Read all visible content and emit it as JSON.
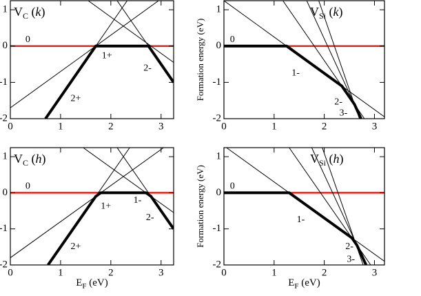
{
  "chart_data": [
    {
      "type": "line",
      "title": {
        "base": "V",
        "sub": "C",
        "open": " (",
        "var": "k",
        "close": ")"
      },
      "xlim": [
        0,
        3.25
      ],
      "ylim": [
        -2,
        1.25
      ],
      "xticks": [
        0,
        1,
        2,
        3
      ],
      "yticks": [
        -2,
        -1,
        0,
        1
      ],
      "series": [
        {
          "color": "#e8251c",
          "style": "medium",
          "x": [
            0,
            3.25
          ],
          "values": [
            0,
            0
          ]
        },
        {
          "color": "#000000",
          "style": "thin",
          "x": [
            0.7,
            2.325
          ],
          "values": [
            -2,
            1.25
          ]
        },
        {
          "color": "#000000",
          "style": "thin",
          "x": [
            0,
            2.95
          ],
          "values": [
            -1.7,
            1.25
          ]
        },
        {
          "color": "#000000",
          "style": "thin",
          "x": [
            1.55,
            3.25
          ],
          "values": [
            1.25,
            -0.45
          ]
        },
        {
          "color": "#000000",
          "style": "thin",
          "x": [
            2.125,
            3.25
          ],
          "values": [
            1.25,
            -1
          ]
        },
        {
          "color": "#000000",
          "style": "thick",
          "x": [
            0.7,
            1.7,
            2.75,
            3.25
          ],
          "values": [
            -2,
            0,
            0,
            -1
          ]
        }
      ],
      "annotations": [
        "0",
        "1+",
        "2+",
        "2-"
      ]
    },
    {
      "type": "line",
      "title": {
        "base": "V",
        "sub": "Si",
        "open": " (",
        "var": "k",
        "close": ")"
      },
      "y_label": "Formation energy (eV)",
      "xlim": [
        0,
        3.2
      ],
      "ylim": [
        -2,
        1.25
      ],
      "xticks": [
        0,
        1,
        2,
        3
      ],
      "yticks": [
        -2,
        -1,
        0,
        1
      ],
      "series": [
        {
          "color": "#e8251c",
          "style": "medium",
          "x": [
            0,
            3.2
          ],
          "values": [
            0,
            0
          ]
        },
        {
          "color": "#000000",
          "style": "thin",
          "x": [
            0,
            3.2
          ],
          "values": [
            1.25,
            -1.95
          ]
        },
        {
          "color": "#000000",
          "style": "thin",
          "x": [
            1.175,
            2.8
          ],
          "values": [
            1.25,
            -2
          ]
        },
        {
          "color": "#000000",
          "style": "thin",
          "x": [
            1.65,
            2.733
          ],
          "values": [
            1.25,
            -2
          ]
        },
        {
          "color": "#000000",
          "style": "thin",
          "x": [
            1.89,
            2.7
          ],
          "values": [
            1.25,
            -2
          ]
        },
        {
          "color": "#000000",
          "style": "thick",
          "x": [
            0,
            1.25,
            2.35,
            2.6,
            2.733
          ],
          "values": [
            0,
            0,
            -1.1,
            -1.6,
            -2
          ]
        }
      ],
      "annotations": [
        "0",
        "1-",
        "2-",
        "3-"
      ]
    },
    {
      "type": "line",
      "title": {
        "base": "V",
        "sub": "C",
        "open": " (",
        "var": "h",
        "close": ")"
      },
      "x_label": {
        "base": "E",
        "sub": "F",
        "rest": " (eV)"
      },
      "xlim": [
        0,
        3.25
      ],
      "ylim": [
        -2,
        1.25
      ],
      "xticks": [
        0,
        1,
        2,
        3
      ],
      "yticks": [
        -2,
        -1,
        0,
        1
      ],
      "series": [
        {
          "color": "#e8251c",
          "style": "medium",
          "x": [
            0,
            3.25
          ],
          "values": [
            0,
            0
          ]
        },
        {
          "color": "#000000",
          "style": "thin",
          "x": [
            0.75,
            2.375
          ],
          "values": [
            -2,
            1.25
          ]
        },
        {
          "color": "#000000",
          "style": "thin",
          "x": [
            0,
            3.05
          ],
          "values": [
            -1.8,
            1.25
          ]
        },
        {
          "color": "#000000",
          "style": "thin",
          "x": [
            1.45,
            3.25
          ],
          "values": [
            1.25,
            -0.55
          ]
        },
        {
          "color": "#000000",
          "style": "thin",
          "x": [
            2.125,
            3.25
          ],
          "values": [
            1.25,
            -1
          ]
        },
        {
          "color": "#000000",
          "style": "thick",
          "x": [
            0.75,
            1.7,
            1.8,
            2.7,
            2.8,
            3.25
          ],
          "values": [
            -2,
            -0.1,
            0,
            0,
            -0.1,
            -1
          ]
        }
      ],
      "annotations": [
        "0",
        "1+",
        "1-",
        "2-",
        "2+"
      ]
    },
    {
      "type": "line",
      "title": {
        "base": "V",
        "sub": "Si",
        "open": " (",
        "var": "h",
        "close": ")"
      },
      "x_label": {
        "base": "E",
        "sub": "F",
        "rest": " (eV)"
      },
      "y_label": "Formation energy (eV)",
      "xlim": [
        0,
        3.2
      ],
      "ylim": [
        -2,
        1.25
      ],
      "xticks": [
        0,
        1,
        2,
        3
      ],
      "yticks": [
        -2,
        -1,
        0,
        1
      ],
      "series": [
        {
          "color": "#e8251c",
          "style": "medium",
          "x": [
            0,
            3.2
          ],
          "values": [
            0,
            0
          ]
        },
        {
          "color": "#000000",
          "style": "thin",
          "x": [
            0.05,
            3.2
          ],
          "values": [
            1.25,
            -1.9
          ]
        },
        {
          "color": "#000000",
          "style": "thin",
          "x": [
            1.3,
            2.925
          ],
          "values": [
            1.25,
            -2
          ]
        },
        {
          "color": "#000000",
          "style": "thin",
          "x": [
            1.75,
            2.833
          ],
          "values": [
            1.25,
            -2
          ]
        },
        {
          "color": "#000000",
          "style": "thin",
          "x": [
            1.96,
            2.775
          ],
          "values": [
            1.25,
            -2
          ]
        },
        {
          "color": "#000000",
          "style": "thick",
          "x": [
            0,
            1.3,
            2.55,
            2.65,
            2.833
          ],
          "values": [
            0,
            0,
            -1.25,
            -1.45,
            -2
          ]
        }
      ],
      "annotations": [
        "0",
        "1-",
        "2-",
        "3-"
      ]
    }
  ]
}
